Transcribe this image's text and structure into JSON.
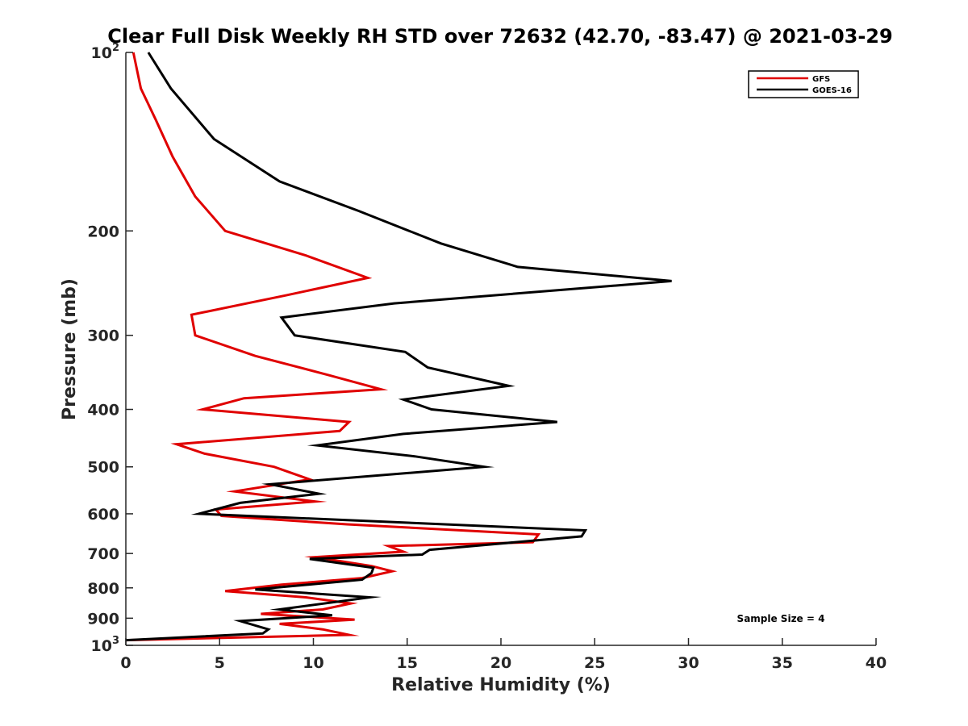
{
  "chart_data": {
    "type": "line",
    "title": "Clear Full Disk Weekly RH STD over 72632 (42.70, -83.47) @ 2021-03-29",
    "xlabel": "Relative Humidity (%)",
    "ylabel": "Pressure (mb)",
    "xlim": [
      0,
      40
    ],
    "ylim": [
      100,
      1000
    ],
    "yscale": "log",
    "y_reversed": true,
    "x_ticks": [
      "0",
      "5",
      "10",
      "15",
      "20",
      "25",
      "30",
      "35",
      "40"
    ],
    "y_ticks": [
      {
        "value": 100,
        "label": "10",
        "sup": "2"
      },
      {
        "value": 200,
        "label": "200"
      },
      {
        "value": 300,
        "label": "300"
      },
      {
        "value": 400,
        "label": "400"
      },
      {
        "value": 500,
        "label": "500"
      },
      {
        "value": 600,
        "label": "600"
      },
      {
        "value": 700,
        "label": "700"
      },
      {
        "value": 800,
        "label": "800"
      },
      {
        "value": 900,
        "label": "900"
      },
      {
        "value": 1000,
        "label": "10",
        "sup": "3"
      }
    ],
    "grid": false,
    "legend_position": "top-right",
    "annotation": "Sample Size = 4",
    "series": [
      {
        "name": "GFS",
        "color": "#e00000",
        "x": [
          0.4,
          0.8,
          1.6,
          2.5,
          3.7,
          5.3,
          9.6,
          12.9,
          8.5,
          3.5,
          3.7,
          6.9,
          10.8,
          13.6,
          6.3,
          4.1,
          11.9,
          11.4,
          2.7,
          4.2,
          7.9,
          9.8,
          5.8,
          10.1,
          4.8,
          5.1,
          11.8,
          22.0,
          21.7,
          14.0,
          14.8,
          10.1,
          13.1,
          14.2,
          12.6,
          8.3,
          5.3,
          9.6,
          12.0,
          10.5,
          7.2,
          12.2,
          8.2,
          10.5,
          11.9,
          0.0
        ],
        "y": [
          100,
          115,
          130,
          150,
          175,
          200,
          220,
          240,
          257,
          277,
          300,
          325,
          350,
          370,
          383,
          400,
          420,
          435,
          458,
          475,
          500,
          525,
          550,
          572,
          590,
          605,
          625,
          650,
          670,
          680,
          695,
          710,
          735,
          750,
          770,
          790,
          810,
          830,
          850,
          870,
          885,
          905,
          920,
          940,
          960,
          980
        ]
      },
      {
        "name": "GOES-16",
        "color": "#000000",
        "x": [
          1.2,
          2.4,
          4.7,
          8.2,
          12.4,
          16.8,
          20.9,
          29.1,
          14.3,
          8.3,
          9.0,
          14.9,
          16.1,
          20.4,
          14.8,
          16.3,
          23.0,
          14.8,
          10.2,
          15.4,
          19.1,
          7.7,
          10.3,
          6.1,
          3.9,
          24.5,
          24.3,
          16.2,
          15.8,
          9.8,
          13.2,
          13.1,
          12.6,
          6.9,
          13.0,
          11.2,
          8.2,
          11.0,
          6.1,
          7.6,
          7.3,
          0.0
        ],
        "y": [
          100,
          115,
          140,
          165,
          185,
          210,
          230,
          243,
          265,
          280,
          300,
          320,
          340,
          365,
          385,
          400,
          420,
          440,
          460,
          480,
          500,
          535,
          555,
          575,
          600,
          640,
          655,
          690,
          703,
          715,
          740,
          755,
          775,
          805,
          830,
          845,
          870,
          890,
          910,
          940,
          955,
          980
        ]
      }
    ]
  }
}
